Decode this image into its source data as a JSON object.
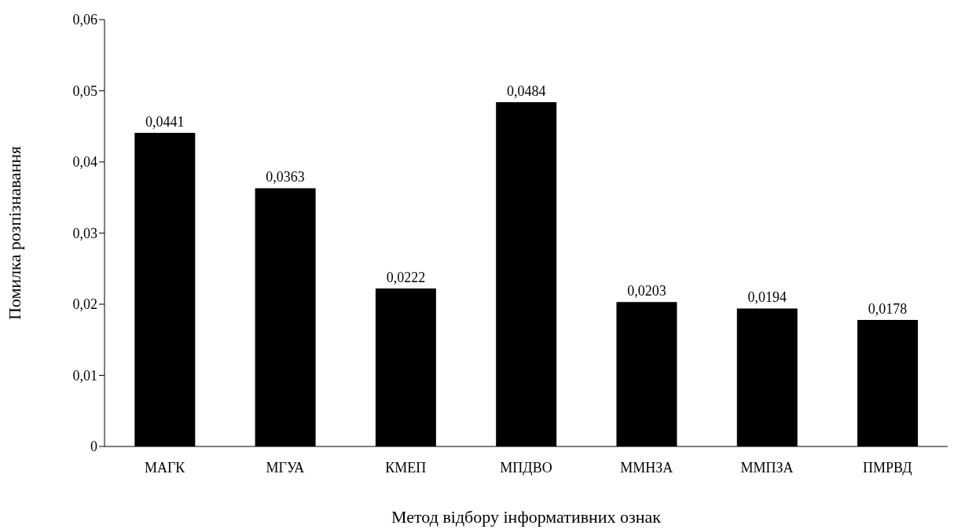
{
  "chart_data": {
    "type": "bar",
    "xlabel": "Метод відбору інформативних ознак",
    "ylabel": "Помилка розпізнавання",
    "categories": [
      "МАГК",
      "МГУА",
      "КМЕП",
      "МПДВО",
      "ММНЗА",
      "ММПЗА",
      "ПМРВД"
    ],
    "values": [
      0.0441,
      0.0363,
      0.0222,
      0.0484,
      0.0203,
      0.0194,
      0.0178
    ],
    "value_labels": [
      "0,0441",
      "0,0363",
      "0,0222",
      "0,0484",
      "0,0203",
      "0,0194",
      "0,0178"
    ],
    "color": "#000000",
    "ylim": [
      0,
      0.06
    ],
    "yticks": [
      {
        "value": 0,
        "label": "0"
      },
      {
        "value": 0.01,
        "label": "0,01"
      },
      {
        "value": 0.02,
        "label": "0,02"
      },
      {
        "value": 0.03,
        "label": "0,03"
      },
      {
        "value": 0.04,
        "label": "0,04"
      },
      {
        "value": 0.05,
        "label": "0,05"
      },
      {
        "value": 0.06,
        "label": "0,06"
      }
    ],
    "grid": false,
    "legend": false
  }
}
